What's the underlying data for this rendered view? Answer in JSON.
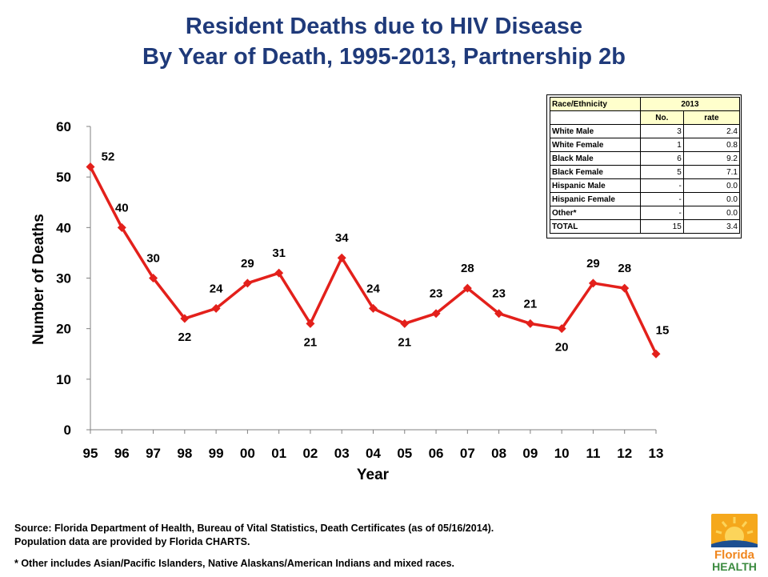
{
  "title": {
    "line1": "Resident Deaths due to HIV Disease",
    "line2": "By Year of Death, 1995-2013, Partnership 2b"
  },
  "chart_data": {
    "type": "line",
    "categories": [
      "95",
      "96",
      "97",
      "98",
      "99",
      "00",
      "01",
      "02",
      "03",
      "04",
      "05",
      "06",
      "07",
      "08",
      "09",
      "10",
      "11",
      "12",
      "13"
    ],
    "series": [
      {
        "values": [
          52,
          40,
          30,
          22,
          24,
          29,
          31,
          21,
          34,
          24,
          21,
          23,
          28,
          23,
          21,
          20,
          29,
          28,
          15
        ],
        "color": "#e3201b"
      }
    ],
    "xlabel": "Year",
    "ylabel": "Number of Deaths",
    "ylim": [
      0,
      60
    ],
    "yticks": [
      0,
      10,
      20,
      30,
      40,
      50,
      60
    ],
    "grid": false,
    "data_labels": true
  },
  "race_table": {
    "header_col": "Race/Ethnicity",
    "header_year": "2013",
    "sub_no": "No.",
    "sub_rate": "rate",
    "rows": [
      {
        "label": "White Male",
        "no": "3",
        "rate": "2.4"
      },
      {
        "label": "White Female",
        "no": "1",
        "rate": "0.8"
      },
      {
        "label": "Black Male",
        "no": "6",
        "rate": "9.2"
      },
      {
        "label": "Black Female",
        "no": "5",
        "rate": "7.1"
      },
      {
        "label": "Hispanic Male",
        "no": "-",
        "rate": "0.0"
      },
      {
        "label": "Hispanic Female",
        "no": "-",
        "rate": "0.0"
      },
      {
        "label": "Other*",
        "no": "-",
        "rate": "0.0"
      },
      {
        "label": "TOTAL",
        "no": "15",
        "rate": "3.4"
      }
    ]
  },
  "footer": {
    "source_line1": "Source:  Florida Department of Health, Bureau of Vital Statistics, Death Certificates (as of 05/16/2014).",
    "source_line2": "Population data are provided by Florida CHARTS.",
    "note": "* Other includes Asian/Pacific Islanders, Native Alaskans/American Indians and mixed races."
  },
  "logo": {
    "line1": "Florida",
    "line2": "HEALTH",
    "colors": {
      "sun": "#f5a81c",
      "blue": "#1d4f91",
      "green": "#3a8a3e",
      "orange": "#f0861e"
    }
  }
}
